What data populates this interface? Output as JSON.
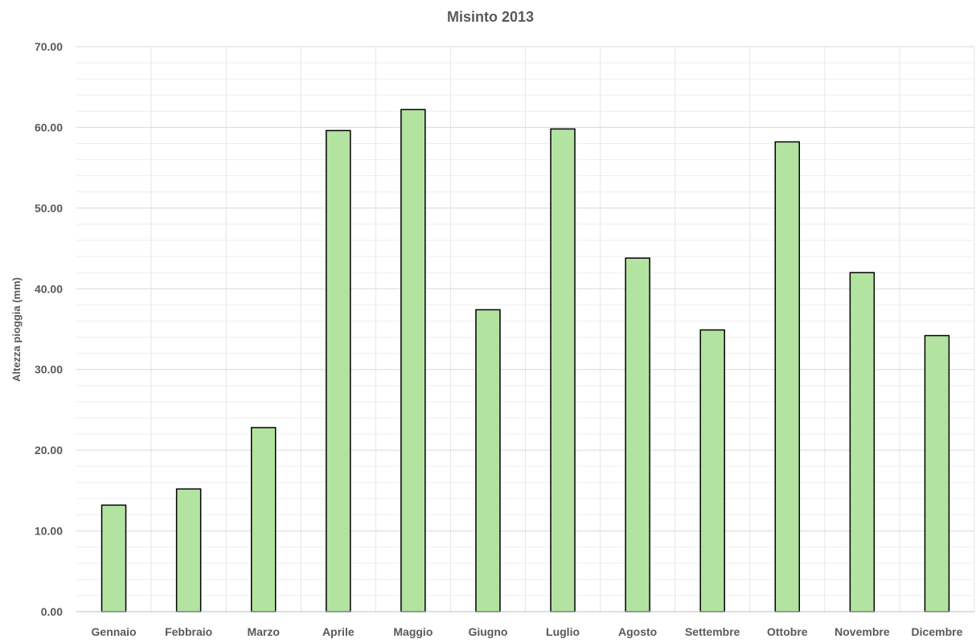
{
  "chart_data": {
    "type": "bar",
    "title": "Misinto 2013",
    "xlabel": "",
    "ylabel": "Altezza pioggia (mm)",
    "categories": [
      "Gennaio",
      "Febbraio",
      "Marzo",
      "Aprile",
      "Maggio",
      "Giugno",
      "Luglio",
      "Agosto",
      "Settembre",
      "Ottobre",
      "Novembre",
      "Dicembre"
    ],
    "values": [
      13.2,
      15.2,
      22.8,
      59.6,
      62.2,
      37.4,
      59.8,
      43.8,
      34.9,
      58.2,
      42.0,
      34.2
    ],
    "ylim": [
      0,
      70
    ],
    "yticks": [
      "0.00",
      "10.00",
      "20.00",
      "30.00",
      "40.00",
      "50.00",
      "60.00",
      "70.00"
    ],
    "ytick_values": [
      0,
      10,
      20,
      30,
      40,
      50,
      60,
      70
    ],
    "minor_gridlines_y": [
      2,
      4,
      6,
      8
    ],
    "grid": true,
    "legend": "none",
    "bar_color": "#b3e3a1",
    "bar_edge_color": "#000000",
    "grid_color": "#d9d9d9"
  }
}
